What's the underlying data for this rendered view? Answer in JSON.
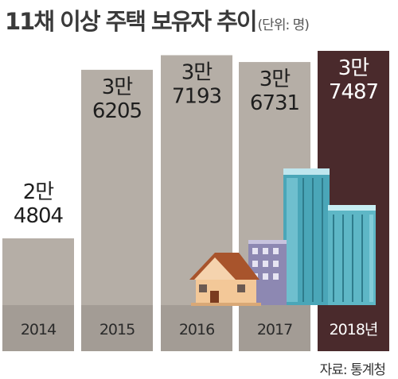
{
  "title": "11채 이상 주택 보유자 추이",
  "unit": "(단위: 명)",
  "source": "자료: 통계청",
  "colors": {
    "bar": "#b5aea6",
    "highlight_bar": "#4a2a2c",
    "bar_text": "#1e1e1e",
    "highlight_text": "#ffffff",
    "label_band": "#a39c95"
  },
  "chart_data": {
    "type": "bar",
    "title": "11채 이상 주택 보유자 추이",
    "xlabel": "",
    "ylabel": "",
    "categories": [
      "2014",
      "2015",
      "2016",
      "2017",
      "2018년"
    ],
    "values": [
      24804,
      36205,
      37193,
      36731,
      37487
    ],
    "data_labels": [
      [
        "2만",
        "4804"
      ],
      [
        "3만",
        "6205"
      ],
      [
        "3만",
        "7193"
      ],
      [
        "3만",
        "6731"
      ],
      [
        "3만",
        "7487"
      ]
    ],
    "highlight_index": 4,
    "grid": false,
    "legend": "none"
  }
}
